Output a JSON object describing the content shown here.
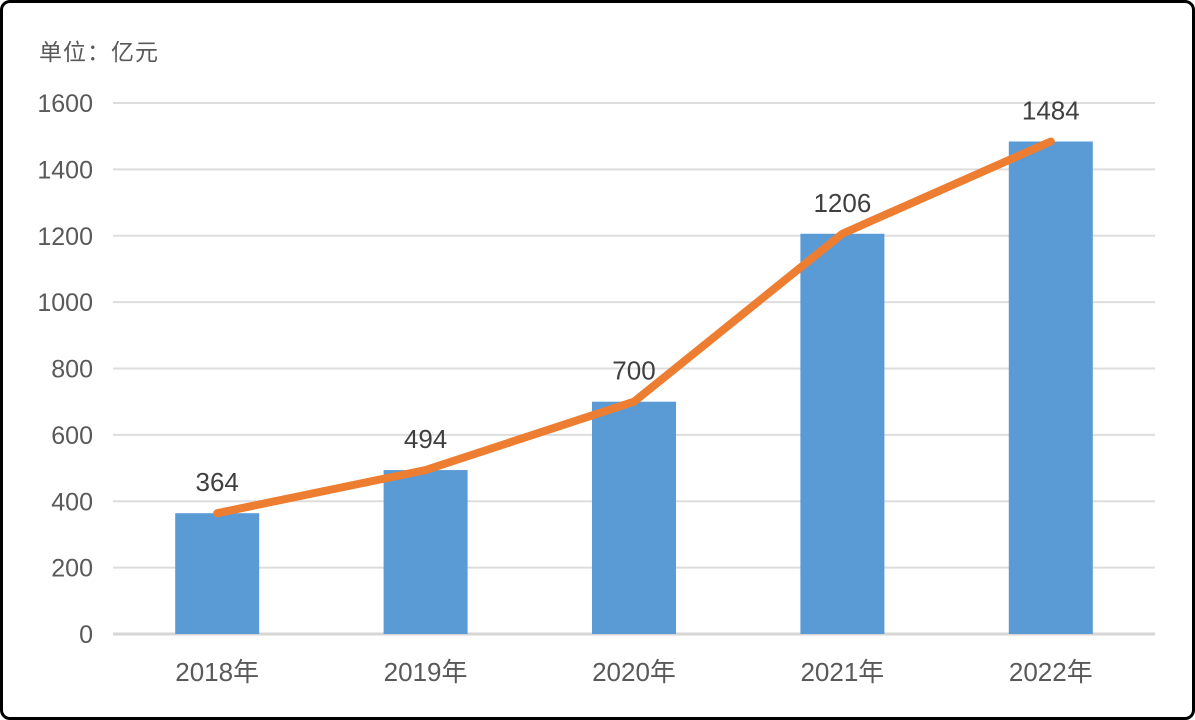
{
  "unit_label": "单位：亿元",
  "chart_data": {
    "type": "bar",
    "title": "",
    "subtitle_unit": "单位：亿元",
    "categories": [
      "2018年",
      "2019年",
      "2020年",
      "2021年",
      "2022年"
    ],
    "series": [
      {
        "name": "bars",
        "type": "bar",
        "values": [
          364,
          494,
          700,
          1206,
          1484
        ]
      },
      {
        "name": "trend-line",
        "type": "line",
        "values": [
          364,
          494,
          700,
          1206,
          1484
        ]
      }
    ],
    "data_labels": [
      "364",
      "494",
      "700",
      "1206",
      "1484"
    ],
    "y_ticks": [
      0,
      200,
      400,
      600,
      800,
      1000,
      1200,
      1400,
      1600
    ],
    "ylim": [
      0,
      1600
    ],
    "xlabel": "",
    "ylabel": "",
    "grid": true,
    "legend": "none",
    "colors": {
      "bar": "#5B9BD5",
      "line": "#ED7D31",
      "grid": "#DDDDDD",
      "axis_line": "#D6D6D6",
      "tick_text": "#595959",
      "data_label_text": "#3F3F3F",
      "background": "#FFFFFF",
      "border": "#000000"
    }
  }
}
